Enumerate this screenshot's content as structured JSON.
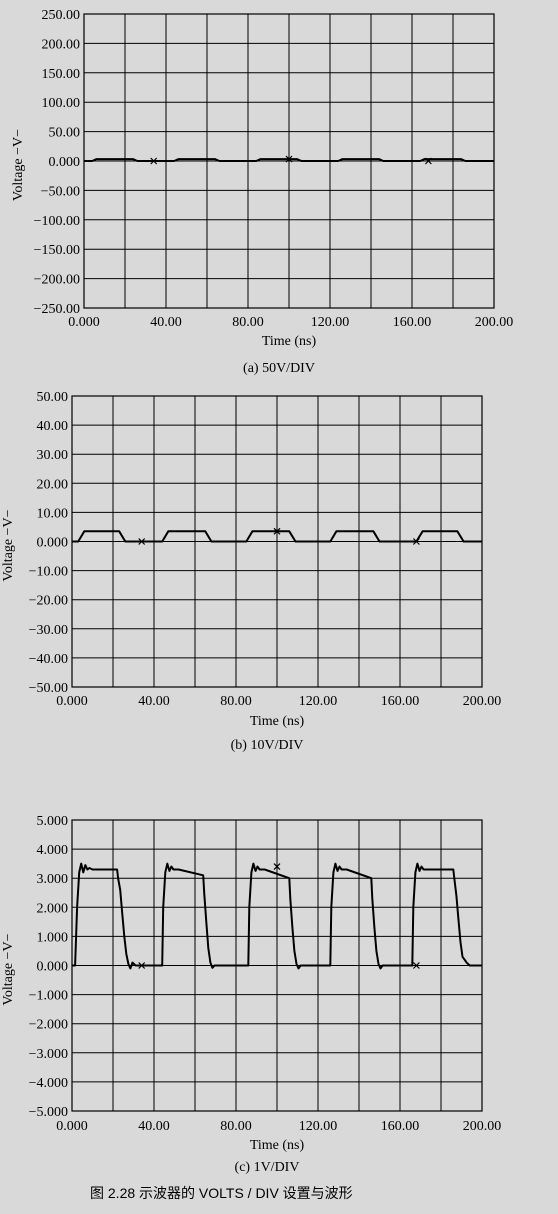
{
  "colors": {
    "background": "#d9d9d9",
    "ink": "#000000"
  },
  "figure_caption": "图 2.28   示波器的 VOLTS / DIV 设置与波形",
  "chart_data": [
    {
      "type": "line",
      "caption": "(a)  50V/DIV",
      "xlabel": "Time (ns)",
      "ylabel": "Voltage  −V−",
      "xlim": [
        0,
        200
      ],
      "ylim": [
        -250,
        250
      ],
      "x_ticks": [
        "0.000",
        "40.00",
        "80.00",
        "120.00",
        "160.00",
        "200.00"
      ],
      "y_ticks": [
        "250.00",
        "200.00",
        "150.00",
        "100.00",
        "50.00",
        "0.000",
        "−50.00",
        "−100.00",
        "−150.00",
        "−200.00",
        "−250.00"
      ],
      "grid": true,
      "series": [
        {
          "x": [
            0,
            4,
            6,
            24,
            26,
            44,
            46,
            64,
            66,
            84,
            86,
            104,
            106,
            124,
            126,
            144,
            146,
            164,
            166,
            184,
            186,
            200
          ],
          "y": [
            0,
            0,
            3.3,
            3.3,
            0,
            0,
            3.3,
            3.3,
            0,
            0,
            3.3,
            3.3,
            0,
            0,
            3.3,
            3.3,
            0,
            0,
            3.3,
            3.3,
            0,
            0
          ]
        }
      ],
      "markers": [
        {
          "x": 34,
          "y": 0
        },
        {
          "x": 100,
          "y": 3.3
        },
        {
          "x": 168,
          "y": 0
        }
      ]
    },
    {
      "type": "line",
      "caption": "(b)  10V/DIV",
      "xlabel": "Time (ns)",
      "ylabel": "Voltage  −V−",
      "xlim": [
        0,
        200
      ],
      "ylim": [
        -50,
        50
      ],
      "x_ticks": [
        "0.000",
        "40.00",
        "80.00",
        "120.00",
        "160.00",
        "200.00"
      ],
      "y_ticks": [
        "50.00",
        "40.00",
        "30.00",
        "20.00",
        "10.00",
        "0.000",
        "−10.00",
        "−20.00",
        "−30.00",
        "−40.00",
        "−50.00"
      ],
      "grid": true,
      "series": [
        {
          "x": [
            0,
            3,
            6,
            23,
            26,
            44,
            47,
            65,
            68,
            85,
            88,
            106,
            109,
            126,
            129,
            147,
            150,
            168,
            171,
            188,
            191,
            200
          ],
          "y": [
            0,
            0,
            3.5,
            3.5,
            0,
            0,
            3.5,
            3.5,
            0,
            0,
            3.5,
            3.5,
            0,
            0,
            3.5,
            3.5,
            0,
            0,
            3.5,
            3.5,
            0,
            0
          ]
        }
      ],
      "markers": [
        {
          "x": 34,
          "y": 0
        },
        {
          "x": 100,
          "y": 3.5
        },
        {
          "x": 168,
          "y": 0
        }
      ]
    },
    {
      "type": "line",
      "caption": "(c)  1V/DIV",
      "xlabel": "Time (ns)",
      "ylabel": "Voltage  −V−",
      "xlim": [
        0,
        200
      ],
      "ylim": [
        -5,
        5
      ],
      "x_ticks": [
        "0.000",
        "40.00",
        "80.00",
        "120.00",
        "160.00",
        "200.00"
      ],
      "y_ticks": [
        "5.000",
        "4.000",
        "3.000",
        "2.000",
        "1.000",
        "0.000",
        "−1.000",
        "−2.000",
        "−3.000",
        "−4.000",
        "−5.000"
      ],
      "grid": true,
      "series": [
        {
          "x": [
            0,
            1.5,
            2.5,
            3.5,
            4.5,
            5.5,
            6.5,
            7.5,
            8.5,
            10,
            22,
            22.5,
            23.5,
            24.5,
            25.5,
            26.5,
            27.5,
            28.5,
            29.5,
            31,
            35,
            40,
            44,
            44.5,
            45.5,
            46.5,
            47.5,
            48.5,
            49.5,
            50.5,
            52,
            64,
            64.5,
            65.5,
            66.5,
            67.5,
            68.5,
            69.5,
            71,
            75,
            80,
            86,
            86.5,
            87.5,
            88.5,
            89.5,
            90.5,
            91.5,
            92.5,
            94,
            106,
            106.5,
            107.5,
            108.5,
            109.5,
            110.5,
            111.5,
            113,
            117,
            122,
            126,
            126.5,
            127.5,
            128.5,
            129.5,
            130.5,
            131.5,
            132.5,
            134,
            146,
            146.5,
            147.5,
            148.5,
            149.5,
            150.5,
            151.5,
            153,
            157,
            162,
            166,
            166.5,
            167.5,
            168.5,
            169.5,
            170.5,
            171.5,
            172.5,
            174,
            186,
            186.5,
            187.5,
            188.5,
            189.5,
            190.5,
            191.5,
            192.5,
            194,
            200
          ],
          "y": [
            0,
            0,
            2,
            3.2,
            3.5,
            3.2,
            3.45,
            3.3,
            3.35,
            3.3,
            3.3,
            3.0,
            2.6,
            1.8,
            1.0,
            0.4,
            0.05,
            -0.1,
            0.1,
            0,
            0,
            0,
            0,
            2,
            3.2,
            3.5,
            3.25,
            3.4,
            3.3,
            3.3,
            3.3,
            3.1,
            2.5,
            1.5,
            0.6,
            0.1,
            -0.08,
            0,
            0,
            0,
            0,
            0,
            2,
            3.2,
            3.5,
            3.25,
            3.4,
            3.3,
            3.3,
            3.3,
            3.0,
            2.3,
            1.3,
            0.5,
            0.05,
            -0.1,
            0,
            0,
            0,
            0,
            0,
            2,
            3.2,
            3.5,
            3.25,
            3.4,
            3.3,
            3.3,
            3.3,
            3.0,
            2.3,
            1.3,
            0.5,
            0.05,
            -0.1,
            0,
            0,
            0,
            0,
            0,
            2,
            3.2,
            3.5,
            3.25,
            3.4,
            3.3,
            3.3,
            3.3,
            3.3,
            3.0,
            2.4,
            1.6,
            0.8,
            0.3,
            0.2,
            0.1,
            0,
            0
          ]
        }
      ],
      "markers": [
        {
          "x": 34,
          "y": 0
        },
        {
          "x": 100,
          "y": 3.4
        },
        {
          "x": 168,
          "y": 0
        }
      ]
    }
  ]
}
